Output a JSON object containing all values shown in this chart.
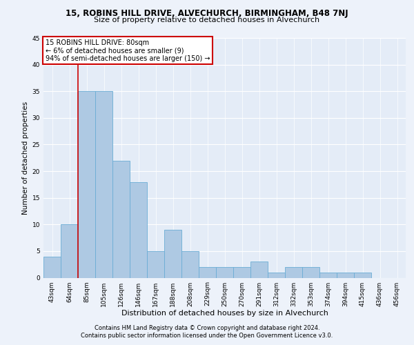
{
  "title1": "15, ROBINS HILL DRIVE, ALVECHURCH, BIRMINGHAM, B48 7NJ",
  "title2": "Size of property relative to detached houses in Alvechurch",
  "xlabel": "Distribution of detached houses by size in Alvechurch",
  "ylabel": "Number of detached properties",
  "categories": [
    "43sqm",
    "64sqm",
    "85sqm",
    "105sqm",
    "126sqm",
    "146sqm",
    "167sqm",
    "188sqm",
    "208sqm",
    "229sqm",
    "250sqm",
    "270sqm",
    "291sqm",
    "312sqm",
    "332sqm",
    "353sqm",
    "374sqm",
    "394sqm",
    "415sqm",
    "436sqm",
    "456sqm"
  ],
  "values": [
    4,
    10,
    35,
    35,
    22,
    18,
    5,
    9,
    5,
    2,
    2,
    2,
    3,
    1,
    2,
    2,
    1,
    1,
    1,
    0,
    0
  ],
  "bar_color": "#aec9e3",
  "bar_edge_color": "#6aadd5",
  "annotation_line1": "15 ROBINS HILL DRIVE: 80sqm",
  "annotation_line2": "← 6% of detached houses are smaller (9)",
  "annotation_line3": "94% of semi-detached houses are larger (150) →",
  "annotation_box_color": "#ffffff",
  "annotation_box_edge_color": "#cc0000",
  "vline_color": "#cc0000",
  "vline_x_index": 1.5,
  "footer1": "Contains HM Land Registry data © Crown copyright and database right 2024.",
  "footer2": "Contains public sector information licensed under the Open Government Licence v3.0.",
  "bg_color": "#edf2fa",
  "plot_bg_color": "#e4ecf7",
  "grid_color": "#ffffff",
  "ylim": [
    0,
    45
  ],
  "title1_fontsize": 8.5,
  "title2_fontsize": 8.0,
  "ylabel_fontsize": 7.5,
  "xlabel_fontsize": 8.0,
  "tick_fontsize": 6.5,
  "ann_fontsize": 7.0,
  "footer_fontsize": 6.0
}
